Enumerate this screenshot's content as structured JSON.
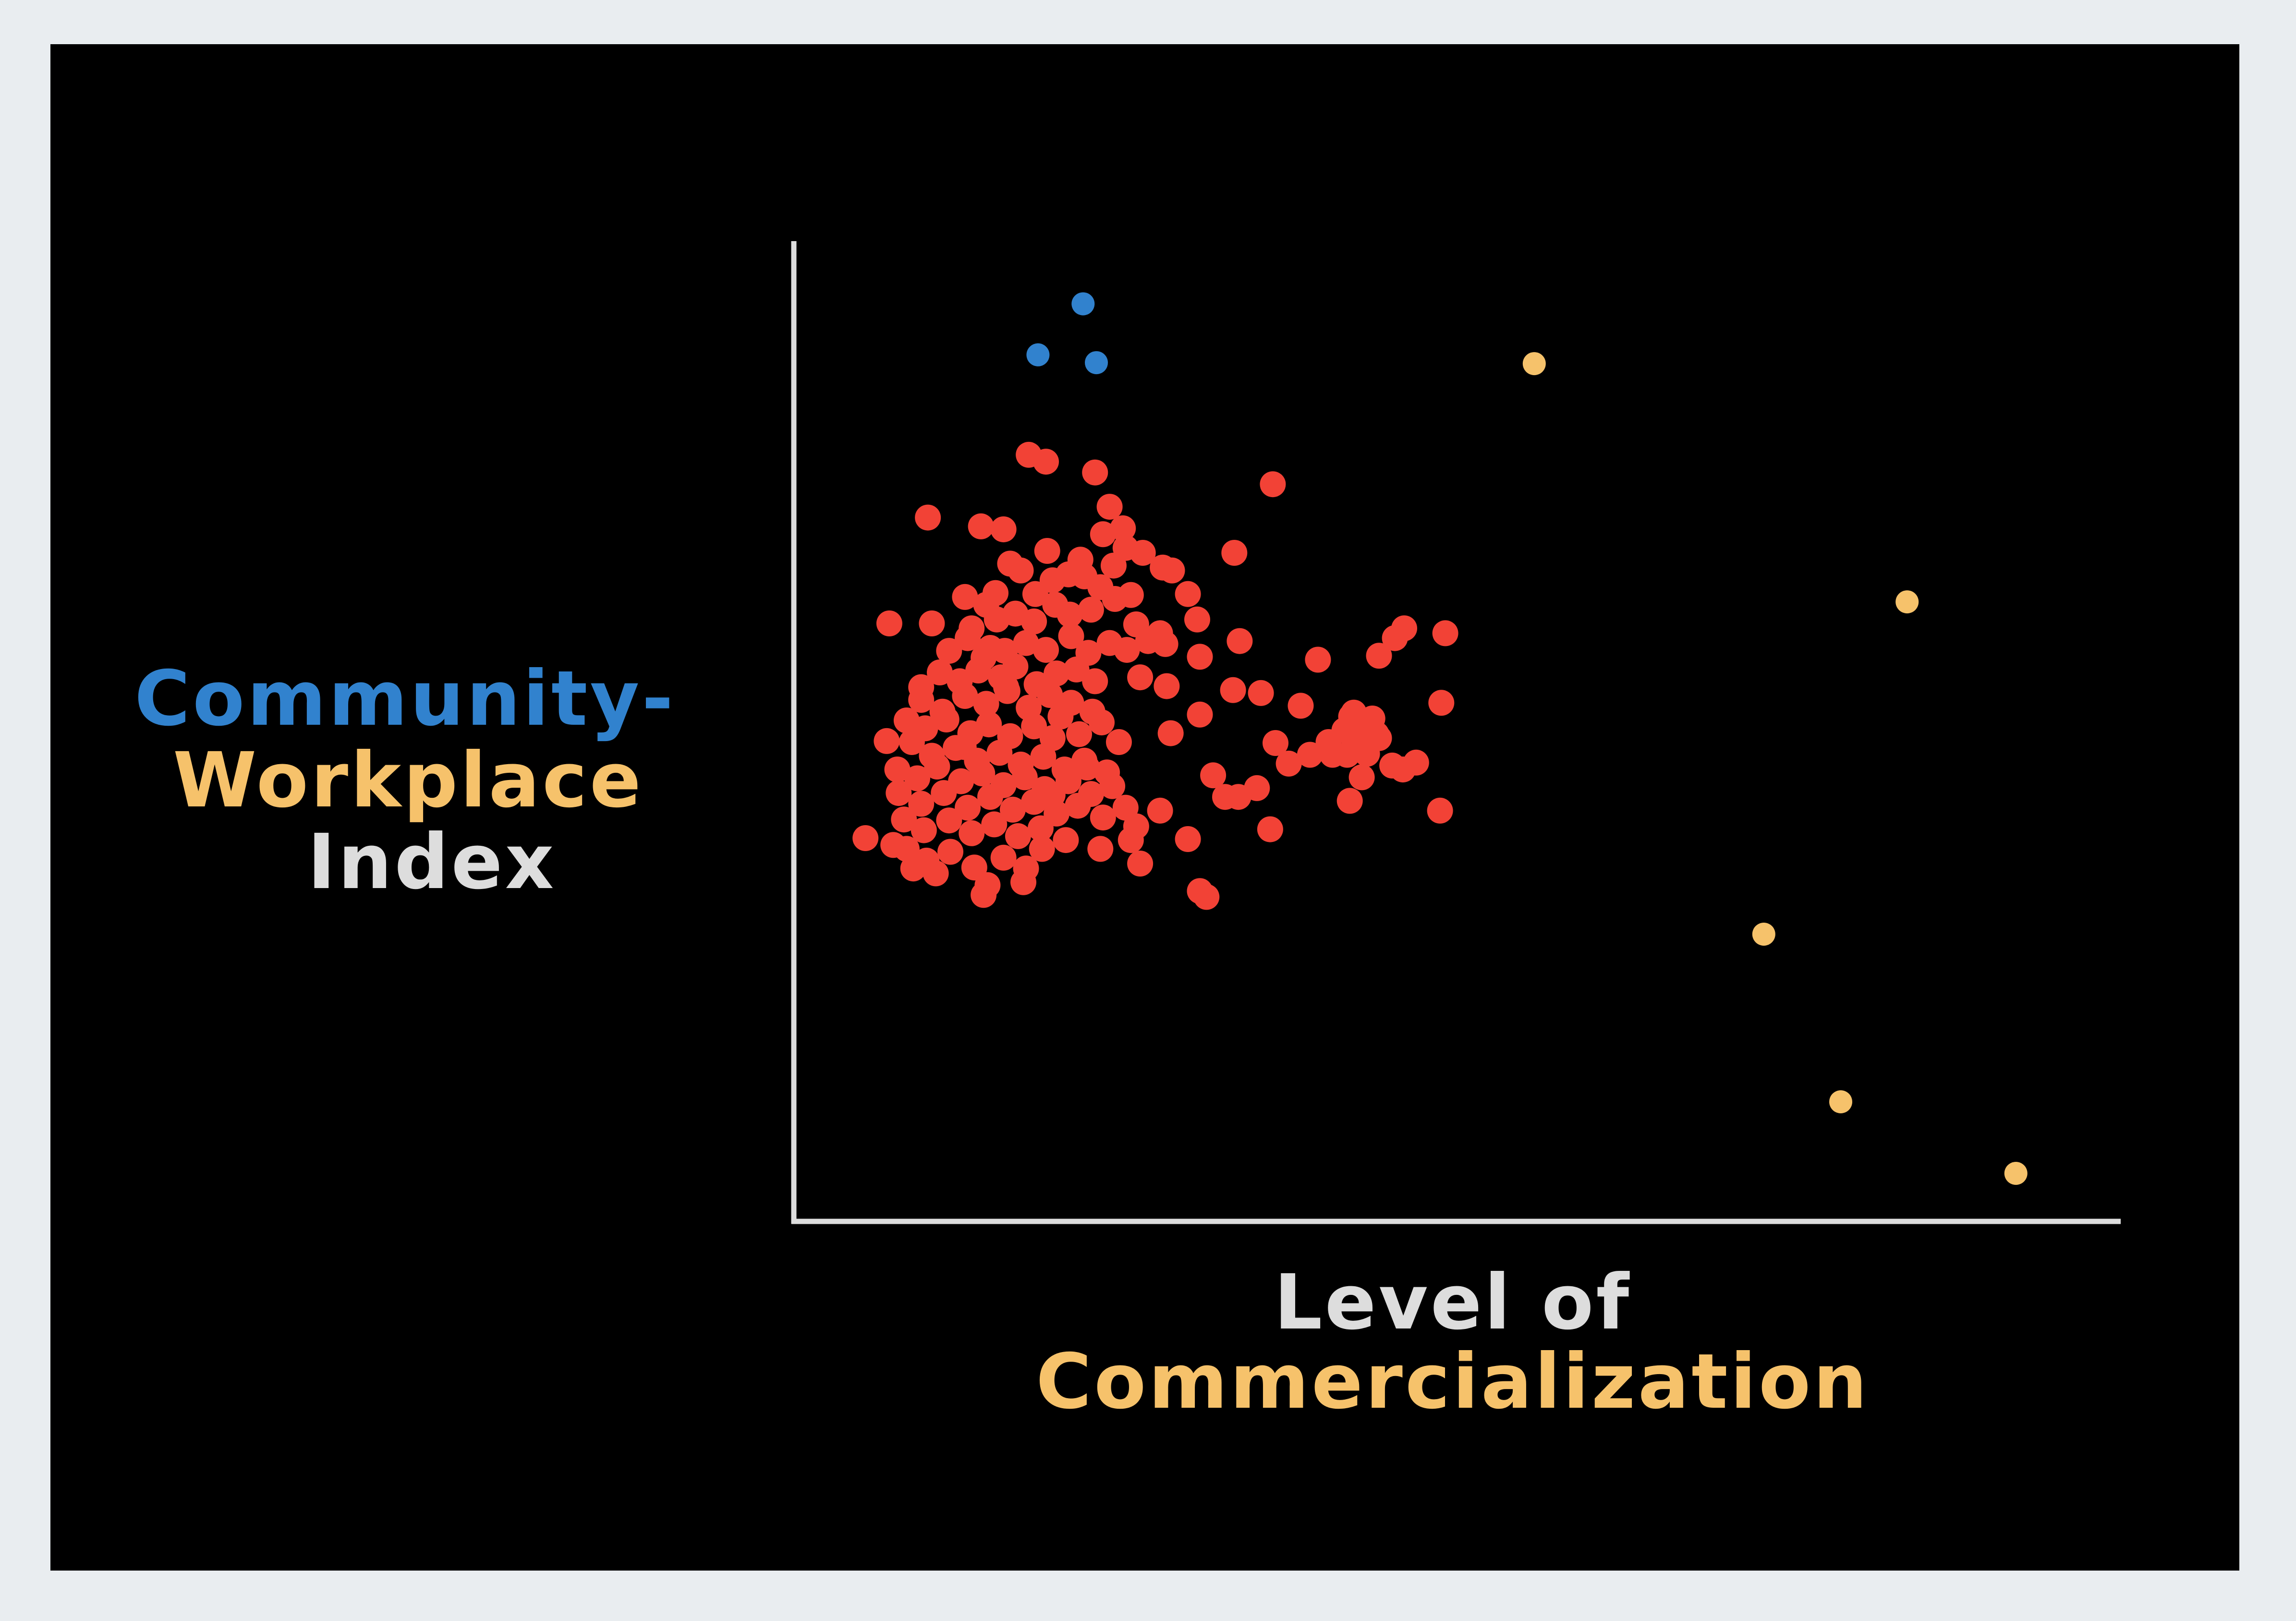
{
  "colors": {
    "page_bg": "#e9edf0",
    "panel_bg": "#000000",
    "axis": "#dddddd",
    "blue": "#3182ce",
    "yellow": "#f6c26b",
    "red": "#f24236",
    "white": "#dddddd"
  },
  "labels": {
    "y_line1": "Community-",
    "y_line2": "Workplace",
    "y_line3": "Index",
    "x_line1": "Level of",
    "x_line2": "Commercialization"
  },
  "chart_data": {
    "type": "scatter",
    "title": "",
    "xlabel": "Level of Commercialization",
    "ylabel": "Community-Workplace Index",
    "xlim": [
      0,
      1
    ],
    "ylim": [
      0,
      1
    ],
    "grid": false,
    "legend": "none",
    "series": [
      {
        "color": "#3182ce",
        "points": [
          [
            0.218,
            0.936
          ],
          [
            0.184,
            0.884
          ],
          [
            0.228,
            0.876
          ]
        ]
      },
      {
        "color": "#f6c26b",
        "points": [
          [
            0.558,
            0.875
          ],
          [
            0.839,
            0.632
          ],
          [
            0.731,
            0.293
          ],
          [
            0.789,
            0.122
          ],
          [
            0.921,
            0.049
          ]
        ]
      },
      {
        "color": "#f24236",
        "points": [
          [
            0.177,
            0.782
          ],
          [
            0.19,
            0.775
          ],
          [
            0.227,
            0.764
          ],
          [
            0.361,
            0.752
          ],
          [
            0.101,
            0.718
          ],
          [
            0.141,
            0.709
          ],
          [
            0.158,
            0.706
          ],
          [
            0.191,
            0.684
          ],
          [
            0.238,
            0.729
          ],
          [
            0.233,
            0.701
          ],
          [
            0.248,
            0.707
          ],
          [
            0.25,
            0.687
          ],
          [
            0.216,
            0.675
          ],
          [
            0.241,
            0.669
          ],
          [
            0.263,
            0.682
          ],
          [
            0.278,
            0.667
          ],
          [
            0.285,
            0.664
          ],
          [
            0.332,
            0.682
          ],
          [
            0.163,
            0.671
          ],
          [
            0.171,
            0.664
          ],
          [
            0.129,
            0.637
          ],
          [
            0.145,
            0.629
          ],
          [
            0.152,
            0.641
          ],
          [
            0.182,
            0.64
          ],
          [
            0.195,
            0.654
          ],
          [
            0.207,
            0.66
          ],
          [
            0.219,
            0.658
          ],
          [
            0.231,
            0.647
          ],
          [
            0.254,
            0.639
          ],
          [
            0.297,
            0.64
          ],
          [
            0.072,
            0.61
          ],
          [
            0.104,
            0.61
          ],
          [
            0.134,
            0.605
          ],
          [
            0.153,
            0.614
          ],
          [
            0.167,
            0.62
          ],
          [
            0.181,
            0.612
          ],
          [
            0.197,
            0.629
          ],
          [
            0.208,
            0.619
          ],
          [
            0.224,
            0.624
          ],
          [
            0.242,
            0.635
          ],
          [
            0.258,
            0.609
          ],
          [
            0.276,
            0.6
          ],
          [
            0.304,
            0.614
          ],
          [
            0.336,
            0.592
          ],
          [
            0.46,
            0.605
          ],
          [
            0.491,
            0.6
          ],
          [
            0.441,
            0.577
          ],
          [
            0.306,
            0.576
          ],
          [
            0.117,
            0.582
          ],
          [
            0.131,
            0.595
          ],
          [
            0.143,
            0.575
          ],
          [
            0.159,
            0.582
          ],
          [
            0.175,
            0.59
          ],
          [
            0.19,
            0.583
          ],
          [
            0.209,
            0.597
          ],
          [
            0.222,
            0.58
          ],
          [
            0.238,
            0.59
          ],
          [
            0.251,
            0.583
          ],
          [
            0.267,
            0.592
          ],
          [
            0.28,
            0.589
          ],
          [
            0.11,
            0.56
          ],
          [
            0.125,
            0.551
          ],
          [
            0.139,
            0.562
          ],
          [
            0.156,
            0.555
          ],
          [
            0.167,
            0.566
          ],
          [
            0.183,
            0.548
          ],
          [
            0.198,
            0.559
          ],
          [
            0.213,
            0.563
          ],
          [
            0.227,
            0.551
          ],
          [
            0.261,
            0.555
          ],
          [
            0.281,
            0.546
          ],
          [
            0.096,
            0.532
          ],
          [
            0.112,
            0.52
          ],
          [
            0.129,
            0.536
          ],
          [
            0.145,
            0.528
          ],
          [
            0.161,
            0.541
          ],
          [
            0.177,
            0.524
          ],
          [
            0.193,
            0.537
          ],
          [
            0.209,
            0.529
          ],
          [
            0.225,
            0.52
          ],
          [
            0.201,
            0.515
          ],
          [
            0.085,
            0.511
          ],
          [
            0.099,
            0.503
          ],
          [
            0.115,
            0.512
          ],
          [
            0.133,
            0.498
          ],
          [
            0.147,
            0.507
          ],
          [
            0.163,
            0.495
          ],
          [
            0.181,
            0.505
          ],
          [
            0.195,
            0.493
          ],
          [
            0.215,
            0.497
          ],
          [
            0.232,
            0.509
          ],
          [
            0.245,
            0.489
          ],
          [
            0.089,
            0.489
          ],
          [
            0.104,
            0.475
          ],
          [
            0.122,
            0.483
          ],
          [
            0.138,
            0.47
          ],
          [
            0.155,
            0.478
          ],
          [
            0.171,
            0.466
          ],
          [
            0.188,
            0.474
          ],
          [
            0.204,
            0.461
          ],
          [
            0.219,
            0.47
          ],
          [
            0.236,
            0.458
          ],
          [
            0.078,
            0.461
          ],
          [
            0.093,
            0.452
          ],
          [
            0.108,
            0.464
          ],
          [
            0.126,
            0.449
          ],
          [
            0.142,
            0.457
          ],
          [
            0.158,
            0.445
          ],
          [
            0.174,
            0.453
          ],
          [
            0.189,
            0.441
          ],
          [
            0.207,
            0.449
          ],
          [
            0.224,
            0.436
          ],
          [
            0.24,
            0.444
          ],
          [
            0.07,
            0.49
          ],
          [
            0.079,
            0.437
          ],
          [
            0.096,
            0.426
          ],
          [
            0.113,
            0.437
          ],
          [
            0.131,
            0.422
          ],
          [
            0.148,
            0.433
          ],
          [
            0.165,
            0.42
          ],
          [
            0.181,
            0.428
          ],
          [
            0.198,
            0.416
          ],
          [
            0.214,
            0.424
          ],
          [
            0.233,
            0.412
          ],
          [
            0.083,
            0.41
          ],
          [
            0.098,
            0.399
          ],
          [
            0.117,
            0.409
          ],
          [
            0.134,
            0.396
          ],
          [
            0.151,
            0.405
          ],
          [
            0.169,
            0.393
          ],
          [
            0.186,
            0.401
          ],
          [
            0.205,
            0.389
          ],
          [
            0.258,
            0.403
          ],
          [
            0.25,
            0.422
          ],
          [
            0.231,
            0.38
          ],
          [
            0.261,
            0.365
          ],
          [
            0.085,
            0.38
          ],
          [
            0.1,
            0.368
          ],
          [
            0.118,
            0.377
          ],
          [
            0.136,
            0.361
          ],
          [
            0.158,
            0.371
          ],
          [
            0.175,
            0.36
          ],
          [
            0.054,
            0.391
          ],
          [
            0.075,
            0.384
          ],
          [
            0.09,
            0.36
          ],
          [
            0.107,
            0.355
          ],
          [
            0.146,
            0.343
          ],
          [
            0.284,
            0.498
          ],
          [
            0.306,
            0.517
          ],
          [
            0.316,
            0.455
          ],
          [
            0.331,
            0.542
          ],
          [
            0.352,
            0.539
          ],
          [
            0.422,
            0.519
          ],
          [
            0.453,
            0.595
          ],
          [
            0.395,
            0.573
          ],
          [
            0.382,
            0.526
          ],
          [
            0.403,
            0.489
          ],
          [
            0.436,
            0.513
          ],
          [
            0.488,
            0.529
          ],
          [
            0.363,
            0.488
          ],
          [
            0.373,
            0.467
          ],
          [
            0.389,
            0.476
          ],
          [
            0.406,
            0.476
          ],
          [
            0.417,
            0.476
          ],
          [
            0.424,
            0.484
          ],
          [
            0.432,
            0.477
          ],
          [
            0.441,
            0.493
          ],
          [
            0.451,
            0.465
          ],
          [
            0.459,
            0.461
          ],
          [
            0.469,
            0.468
          ],
          [
            0.415,
            0.501
          ],
          [
            0.42,
            0.515
          ],
          [
            0.424,
            0.505
          ],
          [
            0.439,
            0.497
          ],
          [
            0.428,
            0.453
          ],
          [
            0.325,
            0.433
          ],
          [
            0.335,
            0.433
          ],
          [
            0.349,
            0.442
          ],
          [
            0.419,
            0.429
          ],
          [
            0.359,
            0.4
          ],
          [
            0.254,
            0.389
          ],
          [
            0.276,
            0.419
          ],
          [
            0.297,
            0.39
          ],
          [
            0.306,
            0.337
          ],
          [
            0.311,
            0.331
          ],
          [
            0.143,
            0.333
          ],
          [
            0.173,
            0.346
          ],
          [
            0.487,
            0.419
          ],
          [
            0.148,
            0.585
          ],
          [
            0.128,
            0.484
          ],
          [
            0.195,
            0.435
          ],
          [
            0.096,
            0.545
          ],
          [
            0.16,
            0.545
          ],
          [
            0.221,
            0.463
          ],
          [
            0.187,
            0.38
          ]
        ]
      }
    ]
  }
}
